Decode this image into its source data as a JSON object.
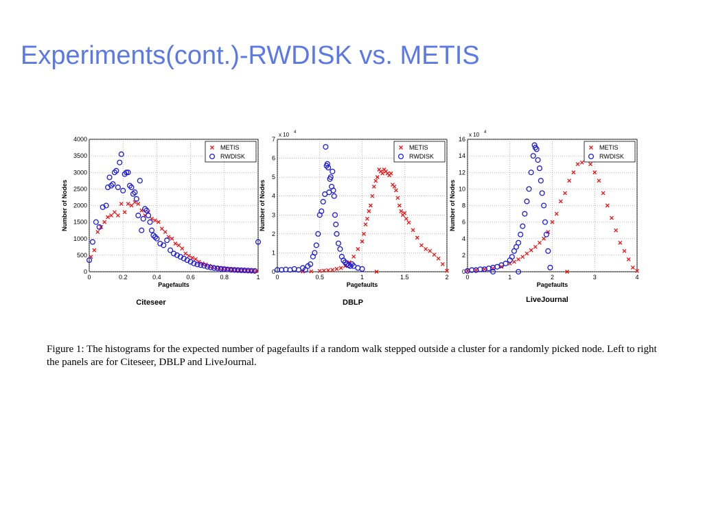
{
  "slide": {
    "title": "Experiments(cont.)-RWDISK vs. METIS"
  },
  "colors": {
    "title": "#5b78e8",
    "metis": "#e11",
    "rwdisk": "#1a1adf",
    "grid": "#888888"
  },
  "caption": {
    "text": "Figure 1: The histograms for the expected number of pagefaults if a random walk stepped outside a cluster for a randomly picked node. Left to right the panels are for Citeseer, DBLP and LiveJournal."
  },
  "chart_data": [
    {
      "type": "scatter",
      "caption": "Citeseer",
      "xlabel": "Pagefaults",
      "ylabel": "Number of Nodes",
      "multiplier": "",
      "xlim": [
        0,
        1
      ],
      "ylim": [
        0,
        4000
      ],
      "xticks": [
        0,
        0.2,
        0.4,
        0.6,
        0.8,
        1
      ],
      "xtick_labels": [
        "0",
        "0.2",
        "0.4",
        "0.6",
        "0.8",
        "1"
      ],
      "yticks": [
        0,
        500,
        1000,
        1500,
        2000,
        2500,
        3000,
        3500,
        4000
      ],
      "ytick_labels": [
        "0",
        "500",
        "1000",
        "1500",
        "2000",
        "2500",
        "3000",
        "3500",
        "4000"
      ],
      "grid": true,
      "legend_position": "top-right",
      "series": [
        {
          "name": "METIS",
          "marker": "x",
          "x": [
            0.01,
            0.03,
            0.05,
            0.07,
            0.09,
            0.11,
            0.13,
            0.15,
            0.17,
            0.19,
            0.21,
            0.23,
            0.25,
            0.27,
            0.29,
            0.31,
            0.33,
            0.35,
            0.37,
            0.39,
            0.41,
            0.43,
            0.45,
            0.47,
            0.49,
            0.51,
            0.53,
            0.55,
            0.57,
            0.59,
            0.61,
            0.63,
            0.65,
            0.67,
            0.69,
            0.71,
            0.73,
            0.75,
            0.77,
            0.79,
            0.81,
            0.83,
            0.85,
            0.87,
            0.89,
            0.91,
            0.93,
            0.95,
            0.97,
            0.99
          ],
          "y": [
            450,
            650,
            1200,
            1350,
            1500,
            1650,
            1700,
            1800,
            1700,
            2050,
            1800,
            2050,
            2000,
            2100,
            2050,
            1850,
            1700,
            1800,
            1600,
            1550,
            1500,
            1300,
            1200,
            1050,
            1000,
            850,
            800,
            700,
            550,
            480,
            420,
            380,
            300,
            250,
            220,
            180,
            150,
            130,
            110,
            95,
            80,
            70,
            60,
            50,
            45,
            40,
            35,
            30,
            25,
            20
          ]
        },
        {
          "name": "RWDISK",
          "marker": "o",
          "x": [
            0.0,
            0.02,
            0.04,
            0.06,
            0.08,
            0.1,
            0.11,
            0.12,
            0.13,
            0.14,
            0.15,
            0.16,
            0.17,
            0.18,
            0.19,
            0.2,
            0.21,
            0.22,
            0.23,
            0.24,
            0.25,
            0.26,
            0.27,
            0.28,
            0.29,
            0.3,
            0.31,
            0.32,
            0.33,
            0.34,
            0.35,
            0.36,
            0.37,
            0.38,
            0.39,
            0.4,
            0.42,
            0.44,
            0.46,
            0.48,
            0.5,
            0.52,
            0.54,
            0.56,
            0.58,
            0.6,
            0.62,
            0.64,
            0.66,
            0.68,
            0.7,
            0.72,
            0.74,
            0.76,
            0.78,
            0.8,
            0.82,
            0.84,
            0.86,
            0.88,
            0.9,
            0.92,
            0.94,
            0.96,
            0.98,
            1.0
          ],
          "y": [
            350,
            900,
            1500,
            1350,
            1950,
            2000,
            2550,
            2850,
            2600,
            2650,
            3000,
            3050,
            2550,
            3300,
            3550,
            2450,
            2950,
            3000,
            3000,
            2600,
            2550,
            2350,
            2400,
            2200,
            1700,
            2750,
            1250,
            1600,
            1900,
            1850,
            1700,
            1500,
            1250,
            1100,
            1050,
            1000,
            850,
            800,
            950,
            650,
            550,
            500,
            450,
            400,
            350,
            300,
            250,
            220,
            200,
            180,
            150,
            130,
            110,
            100,
            90,
            80,
            70,
            60,
            55,
            50,
            45,
            40,
            35,
            30,
            25,
            900
          ]
        }
      ]
    },
    {
      "type": "scatter",
      "caption": "DBLP",
      "xlabel": "Pagefaults",
      "ylabel": "Number of Nodes",
      "multiplier": "x 10",
      "multiplier_exp": "4",
      "xlim": [
        0,
        2
      ],
      "ylim": [
        0,
        7
      ],
      "xticks": [
        0,
        0.5,
        1,
        1.5,
        2
      ],
      "xtick_labels": [
        "0",
        "0.5",
        "1",
        "1.5",
        "2"
      ],
      "yticks": [
        0,
        1,
        2,
        3,
        4,
        5,
        6,
        7
      ],
      "ytick_labels": [
        "0",
        "1",
        "2",
        "3",
        "4",
        "5",
        "6",
        "7"
      ],
      "grid": true,
      "legend_position": "top-right",
      "series": [
        {
          "name": "METIS",
          "marker": "x",
          "x": [
            0.3,
            0.4,
            0.5,
            0.55,
            0.6,
            0.65,
            0.7,
            0.75,
            0.8,
            0.85,
            0.9,
            0.95,
            1.0,
            1.02,
            1.04,
            1.06,
            1.08,
            1.1,
            1.12,
            1.14,
            1.16,
            1.18,
            1.2,
            1.22,
            1.24,
            1.26,
            1.28,
            1.3,
            1.32,
            1.34,
            1.36,
            1.38,
            1.4,
            1.42,
            1.44,
            1.46,
            1.48,
            1.5,
            1.52,
            1.55,
            1.6,
            1.65,
            1.7,
            1.75,
            1.8,
            1.85,
            1.9,
            1.95,
            2.0,
            1.17
          ],
          "y": [
            0.01,
            0.02,
            0.04,
            0.06,
            0.08,
            0.1,
            0.15,
            0.2,
            0.3,
            0.5,
            0.8,
            1.2,
            1.6,
            2.0,
            2.5,
            2.8,
            3.2,
            3.5,
            4.0,
            4.5,
            4.8,
            5.0,
            5.4,
            5.3,
            5.2,
            5.4,
            5.3,
            5.2,
            5.1,
            5.2,
            4.6,
            4.5,
            4.3,
            3.9,
            3.5,
            3.2,
            3.0,
            3.1,
            2.8,
            2.6,
            2.2,
            1.8,
            1.4,
            1.2,
            1.1,
            0.9,
            0.7,
            0.4,
            0.05,
            0.0
          ]
        },
        {
          "name": "RWDISK",
          "marker": "o",
          "x": [
            0.0,
            0.05,
            0.1,
            0.15,
            0.2,
            0.25,
            0.3,
            0.33,
            0.36,
            0.39,
            0.42,
            0.44,
            0.46,
            0.48,
            0.5,
            0.52,
            0.54,
            0.56,
            0.57,
            0.58,
            0.59,
            0.6,
            0.61,
            0.62,
            0.63,
            0.64,
            0.65,
            0.66,
            0.67,
            0.68,
            0.69,
            0.7,
            0.72,
            0.74,
            0.76,
            0.78,
            0.8,
            0.82,
            0.84,
            0.86,
            0.88,
            0.9,
            0.95,
            1.0
          ],
          "y": [
            0.1,
            0.1,
            0.12,
            0.1,
            0.15,
            0.1,
            0.2,
            0.1,
            0.3,
            0.4,
            0.8,
            1.0,
            1.4,
            2.0,
            3.0,
            3.2,
            3.7,
            4.1,
            6.6,
            5.6,
            5.7,
            5.5,
            4.2,
            4.9,
            5.0,
            4.5,
            5.3,
            4.3,
            4.0,
            3.0,
            2.5,
            2.0,
            1.5,
            1.2,
            0.8,
            0.6,
            0.5,
            0.4,
            0.35,
            0.3,
            0.4,
            0.3,
            0.2,
            0.15
          ]
        }
      ]
    },
    {
      "type": "scatter",
      "caption": "LiveJournal",
      "xlabel": "Pagefaults",
      "ylabel": "Number of Nodes",
      "multiplier": "x 10",
      "multiplier_exp": "4",
      "xlim": [
        0,
        4
      ],
      "ylim": [
        0,
        16
      ],
      "xticks": [
        0,
        1,
        2,
        3,
        4
      ],
      "xtick_labels": [
        "0",
        "1",
        "2",
        "3",
        "4"
      ],
      "yticks": [
        0,
        2,
        4,
        6,
        8,
        10,
        12,
        14,
        16
      ],
      "ytick_labels": [
        "0",
        "2",
        "4",
        "6",
        "8",
        "10",
        "12",
        "14",
        "16"
      ],
      "grid": true,
      "legend_position": "top-right",
      "series": [
        {
          "name": "METIS",
          "marker": "x",
          "x": [
            0.0,
            0.2,
            0.4,
            0.6,
            0.8,
            1.0,
            1.1,
            1.2,
            1.3,
            1.4,
            1.5,
            1.6,
            1.7,
            1.8,
            1.9,
            2.0,
            2.1,
            2.2,
            2.3,
            2.4,
            2.5,
            2.6,
            2.7,
            2.8,
            2.9,
            3.0,
            3.1,
            3.2,
            3.3,
            3.4,
            3.5,
            3.6,
            3.7,
            3.8,
            3.9,
            4.0,
            2.35
          ],
          "y": [
            0.1,
            0.2,
            0.3,
            0.4,
            0.6,
            1.0,
            1.2,
            1.5,
            1.8,
            2.2,
            2.6,
            3.0,
            3.5,
            4.0,
            4.8,
            6.0,
            7.0,
            8.5,
            9.5,
            11.0,
            12.0,
            13.0,
            13.2,
            13.7,
            13.0,
            12.0,
            11.0,
            9.5,
            8.0,
            6.5,
            5.0,
            3.5,
            2.5,
            1.5,
            0.5,
            0.1,
            0.0
          ]
        },
        {
          "name": "RWDISK",
          "marker": "o",
          "x": [
            0.0,
            0.1,
            0.2,
            0.3,
            0.4,
            0.5,
            0.6,
            0.7,
            0.8,
            0.9,
            1.0,
            1.05,
            1.1,
            1.15,
            1.2,
            1.25,
            1.3,
            1.35,
            1.4,
            1.45,
            1.5,
            1.55,
            1.58,
            1.6,
            1.63,
            1.66,
            1.7,
            1.73,
            1.76,
            1.8,
            1.83,
            1.86,
            1.9,
            1.95,
            0.6,
            1.2
          ],
          "y": [
            0.1,
            0.2,
            0.2,
            0.3,
            0.3,
            0.4,
            0.5,
            0.6,
            0.8,
            1.0,
            1.4,
            1.8,
            2.5,
            3.0,
            3.5,
            4.5,
            5.5,
            7.0,
            8.5,
            10.0,
            12.0,
            14.0,
            15.3,
            15.0,
            14.8,
            13.5,
            12.5,
            11.0,
            9.5,
            8.0,
            6.0,
            4.5,
            2.5,
            0.5,
            0.0,
            0.0
          ]
        }
      ]
    }
  ]
}
